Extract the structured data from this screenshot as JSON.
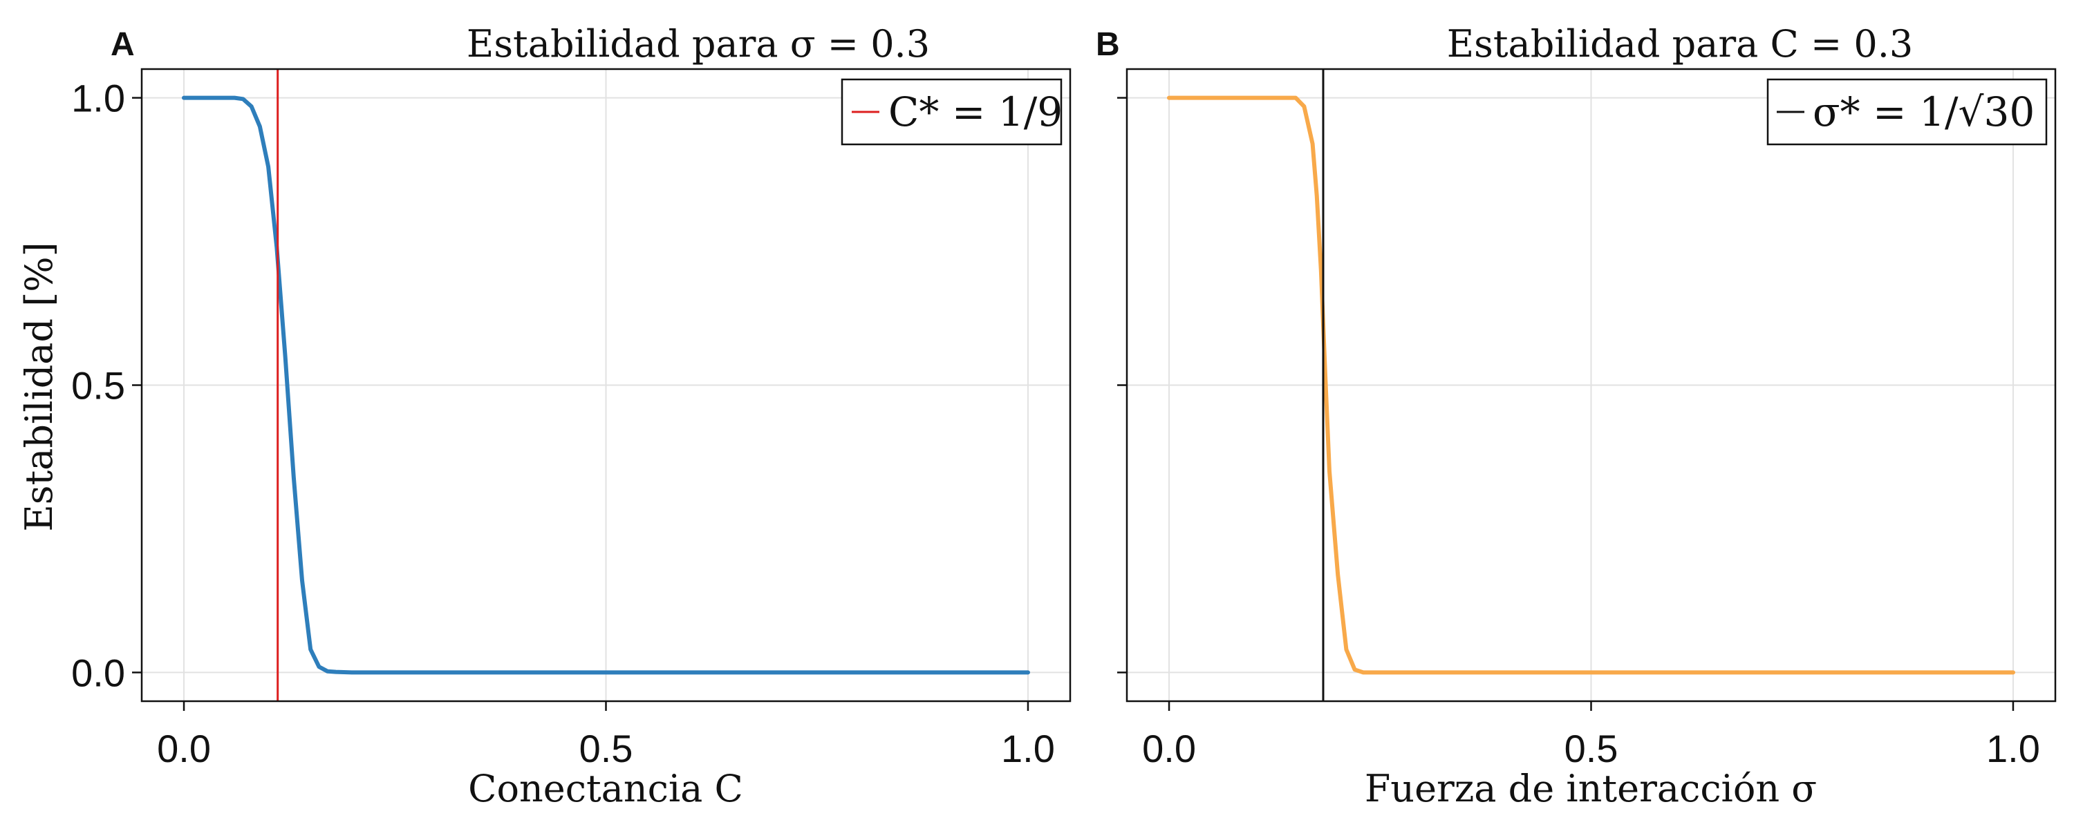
{
  "chart_data": [
    {
      "type": "line",
      "panel_label": "A",
      "title": "Estabilidad para σ = 0.3",
      "xlabel": "Conectancia C",
      "ylabel": "Estabilidad [%]",
      "xlim": [
        -0.05,
        1.05
      ],
      "ylim": [
        -0.05,
        1.05
      ],
      "xticks": [
        0.0,
        0.5,
        1.0
      ],
      "xtick_labels": [
        "0.0",
        "0.5",
        "1.0"
      ],
      "yticks": [
        0.0,
        0.5,
        1.0
      ],
      "ytick_labels": [
        "0.0",
        "0.5",
        "1.0"
      ],
      "grid": true,
      "legend_position": "top-right",
      "series": [
        {
          "color": "#2e7ebb",
          "x": [
            0,
            0.02,
            0.04,
            0.06,
            0.07,
            0.08,
            0.09,
            0.1,
            0.11,
            0.12,
            0.13,
            0.14,
            0.15,
            0.16,
            0.17,
            0.18,
            0.2,
            0.25,
            0.3,
            0.4,
            0.5,
            0.6,
            0.7,
            0.8,
            0.9,
            1.0
          ],
          "values": [
            1,
            1,
            1,
            1,
            0.998,
            0.985,
            0.95,
            0.88,
            0.74,
            0.55,
            0.34,
            0.16,
            0.04,
            0.01,
            0.002,
            0.001,
            0,
            0,
            0,
            0,
            0,
            0,
            0,
            0,
            0,
            0
          ]
        }
      ],
      "vline": {
        "x": 0.1111,
        "color": "#dd1f1f",
        "legend_label": "C* = 1/9"
      }
    },
    {
      "type": "line",
      "panel_label": "B",
      "title": "Estabilidad para C = 0.3",
      "xlabel": "Fuerza de interacción σ",
      "xlim": [
        -0.05,
        1.05
      ],
      "ylim": [
        -0.05,
        1.05
      ],
      "xticks": [
        0.0,
        0.5,
        1.0
      ],
      "xtick_labels": [
        "0.0",
        "0.5",
        "1.0"
      ],
      "yticks": [
        0.0,
        0.5,
        1.0
      ],
      "grid": true,
      "legend_position": "top-right",
      "series": [
        {
          "color": "#f8a94a",
          "x": [
            0,
            0.05,
            0.1,
            0.15,
            0.16,
            0.17,
            0.175,
            0.18,
            0.185,
            0.19,
            0.2,
            0.21,
            0.22,
            0.23,
            0.25,
            0.3,
            0.4,
            0.5,
            0.6,
            0.7,
            0.8,
            0.9,
            1.0
          ],
          "values": [
            1,
            1,
            1,
            1,
            0.985,
            0.92,
            0.83,
            0.7,
            0.52,
            0.35,
            0.17,
            0.04,
            0.005,
            0,
            0,
            0,
            0,
            0,
            0,
            0,
            0,
            0,
            0
          ]
        }
      ],
      "vline": {
        "x": 0.1826,
        "color": "#111111",
        "legend_label": "σ* = 1/√30"
      }
    }
  ]
}
